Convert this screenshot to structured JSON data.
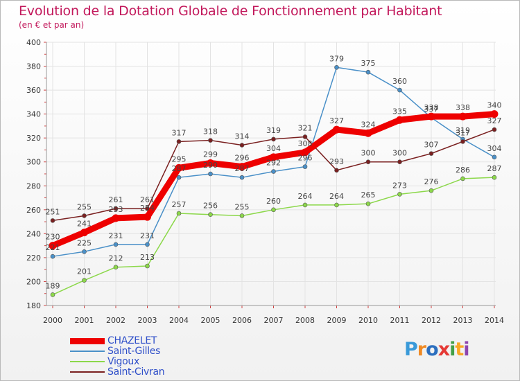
{
  "header": {
    "title": "Evolution de la Dotation Globale de Fonctionnement par Habitant",
    "subtitle": "(en € et par an)"
  },
  "logo": {
    "text": "Proxiti",
    "letters": [
      "P",
      "r",
      "o",
      "x",
      "i",
      "t",
      "i"
    ],
    "colors": [
      "#3a9ad9",
      "#f08a24",
      "#2c6fbf",
      "#e53935",
      "#43a047",
      "#f9a825",
      "#8e44ad"
    ]
  },
  "chart_data": {
    "type": "line",
    "title": "Evolution de la Dotation Globale de Fonctionnement par Habitant",
    "subtitle": "(en € et par an)",
    "xlabel": "",
    "ylabel": "",
    "x": [
      "2000",
      "2001",
      "2002",
      "2003",
      "2004",
      "2005",
      "2006",
      "2007",
      "2008",
      "2009",
      "2010",
      "2011",
      "2012",
      "2013",
      "2014"
    ],
    "ylim": [
      180,
      400
    ],
    "yticks": [
      180,
      200,
      220,
      240,
      260,
      280,
      300,
      320,
      340,
      360,
      380,
      400
    ],
    "grid": true,
    "legend_position": "bottom-left",
    "series": [
      {
        "name": "CHAZELET",
        "color": "#ee0000",
        "values": [
          230,
          241,
          253,
          254,
          295,
          299,
          296,
          304,
          308,
          327,
          324,
          335,
          338,
          338,
          340
        ]
      },
      {
        "name": "Saint-Gilles",
        "color": "#4a90c8",
        "values": [
          221,
          225,
          231,
          231,
          287,
          290,
          287,
          292,
          296,
          379,
          375,
          360,
          337,
          319,
          304
        ]
      },
      {
        "name": "Vigoux",
        "color": "#8cd84a",
        "values": [
          189,
          201,
          212,
          213,
          257,
          256,
          255,
          260,
          264,
          264,
          265,
          273,
          276,
          286,
          287
        ]
      },
      {
        "name": "Saint-Civran",
        "color": "#7a2020",
        "values": [
          251,
          255,
          261,
          261,
          317,
          318,
          314,
          319,
          321,
          293,
          300,
          300,
          307,
          317,
          327
        ]
      }
    ]
  }
}
